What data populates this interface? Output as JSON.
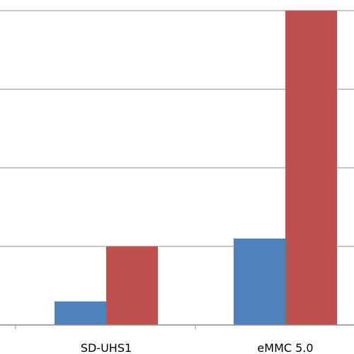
{
  "chart_data": {
    "type": "bar",
    "categories": [
      "SD-UHS1",
      "eMMC 5.0"
    ],
    "series": [
      {
        "values": [
          3,
          11
        ],
        "color": "#4f81bd"
      },
      {
        "values": [
          10,
          40
        ],
        "color": "#c0504d"
      }
    ],
    "ylim": [
      0,
      40
    ],
    "y_gridlines": [
      10,
      20,
      30,
      40
    ],
    "grid": true,
    "title": "",
    "xlabel": "",
    "ylabel": ""
  }
}
